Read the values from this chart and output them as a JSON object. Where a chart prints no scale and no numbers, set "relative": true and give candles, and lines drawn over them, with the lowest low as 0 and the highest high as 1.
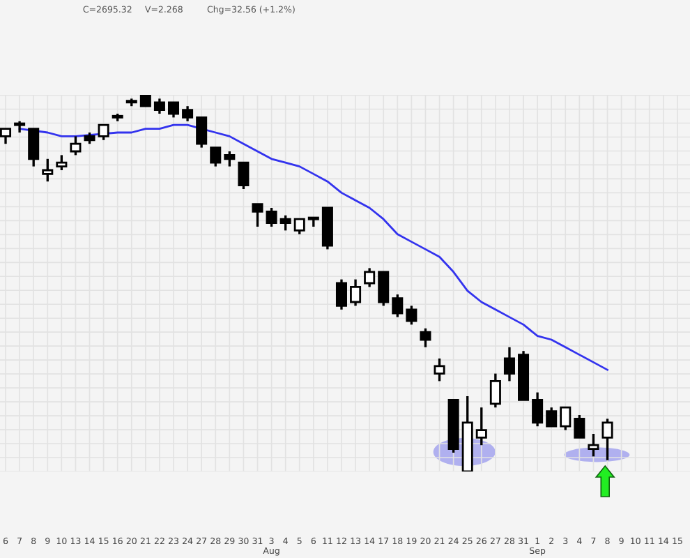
{
  "chart_data": {
    "type": "candlestick",
    "relative": true,
    "grid": true,
    "annotations": [
      "C=2695.32",
      "V=2.268",
      "Chg=32.56 (+1.2%)"
    ],
    "categories": [
      "6",
      "7",
      "8",
      "9",
      "10",
      "13",
      "14",
      "15",
      "16",
      "20",
      "21",
      "22",
      "23",
      "24",
      "27",
      "28",
      "29",
      "30",
      "31",
      "3\nAug",
      "4",
      "5",
      "6",
      "11",
      "12",
      "13",
      "14",
      "17",
      "18",
      "19",
      "20",
      "21",
      "24",
      "25",
      "26",
      "27",
      "28",
      "31",
      "1\nSep",
      "2",
      "3",
      "4",
      "7",
      "8",
      "9",
      "10",
      "11",
      "14",
      "15"
    ],
    "ohlc": [
      [
        0.89,
        0.91,
        0.87,
        0.91
      ],
      [
        0.92,
        0.93,
        0.9,
        0.92
      ],
      [
        0.91,
        0.91,
        0.81,
        0.83
      ],
      [
        0.79,
        0.83,
        0.77,
        0.8
      ],
      [
        0.81,
        0.84,
        0.8,
        0.82
      ],
      [
        0.85,
        0.89,
        0.84,
        0.87
      ],
      [
        0.89,
        0.9,
        0.87,
        0.88
      ],
      [
        0.89,
        0.92,
        0.88,
        0.92
      ],
      [
        0.94,
        0.95,
        0.93,
        0.94
      ],
      [
        0.98,
        0.99,
        0.97,
        0.98
      ],
      [
        1.0,
        1.0,
        0.97,
        0.97
      ],
      [
        0.98,
        0.99,
        0.95,
        0.96
      ],
      [
        0.98,
        0.98,
        0.94,
        0.95
      ],
      [
        0.96,
        0.97,
        0.93,
        0.94
      ],
      [
        0.94,
        0.94,
        0.86,
        0.87
      ],
      [
        0.86,
        0.86,
        0.81,
        0.82
      ],
      [
        0.84,
        0.85,
        0.81,
        0.83
      ],
      [
        0.82,
        0.82,
        0.75,
        0.76
      ],
      [
        0.71,
        0.71,
        0.65,
        0.69
      ],
      [
        0.69,
        0.7,
        0.65,
        0.66
      ],
      [
        0.67,
        0.68,
        0.64,
        0.66
      ],
      [
        0.64,
        0.67,
        0.63,
        0.67
      ],
      [
        0.67,
        0.67,
        0.65,
        0.67
      ],
      [
        0.7,
        0.7,
        0.59,
        0.6
      ],
      [
        0.5,
        0.51,
        0.43,
        0.44
      ],
      [
        0.45,
        0.51,
        0.44,
        0.49
      ],
      [
        0.5,
        0.54,
        0.49,
        0.53
      ],
      [
        0.53,
        0.53,
        0.44,
        0.45
      ],
      [
        0.46,
        0.47,
        0.41,
        0.42
      ],
      [
        0.43,
        0.44,
        0.39,
        0.4
      ],
      [
        0.37,
        0.38,
        0.33,
        0.35
      ],
      [
        0.26,
        0.3,
        0.24,
        0.28
      ],
      [
        0.19,
        0.19,
        0.05,
        0.06
      ],
      [
        0.0,
        0.2,
        0.0,
        0.13
      ],
      [
        0.09,
        0.17,
        0.07,
        0.11
      ],
      [
        0.18,
        0.26,
        0.17,
        0.24
      ],
      [
        0.3,
        0.33,
        0.24,
        0.26
      ],
      [
        0.31,
        0.32,
        0.19,
        0.19
      ],
      [
        0.19,
        0.21,
        0.12,
        0.13
      ],
      [
        0.16,
        0.17,
        0.12,
        0.12
      ],
      [
        0.12,
        0.17,
        0.11,
        0.17
      ],
      [
        0.14,
        0.15,
        0.09,
        0.09
      ],
      [
        0.06,
        0.1,
        0.04,
        0.07
      ],
      [
        0.09,
        0.14,
        0.03,
        0.13
      ],
      null,
      null,
      null,
      null,
      null
    ],
    "series": [
      {
        "type": "line",
        "color": "#3333ee",
        "values": [
          null,
          0.91,
          null,
          0.9,
          0.89,
          0.89,
          null,
          null,
          0.9,
          0.9,
          0.91,
          0.91,
          0.92,
          0.92,
          null,
          0.9,
          0.89,
          0.87,
          0.85,
          0.83,
          0.82,
          0.81,
          0.79,
          0.77,
          0.74,
          0.72,
          0.7,
          0.67,
          0.63,
          0.61,
          0.59,
          0.57,
          0.53,
          0.48,
          0.45,
          0.43,
          0.41,
          0.39,
          0.36,
          0.35,
          0.33,
          0.31,
          0.29,
          0.27,
          null,
          null,
          null,
          null,
          null
        ]
      }
    ]
  }
}
